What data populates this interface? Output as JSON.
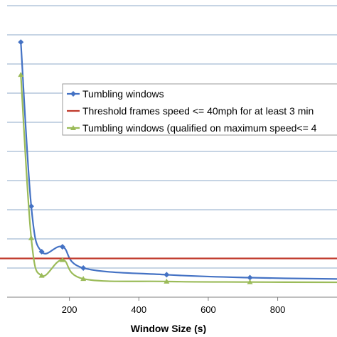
{
  "chart_data": {
    "type": "line",
    "xlabel": "Window Size (s)",
    "ylabel": "",
    "title": "",
    "xlim": [
      0,
      1000
    ],
    "ylim": [
      0,
      100
    ],
    "x_ticks": [
      200,
      400,
      600,
      800
    ],
    "grid": "horizontal",
    "legend_position": "right",
    "series": [
      {
        "name": "Tumbling windows",
        "color": "#4472C4",
        "marker": "diamond",
        "x": [
          60,
          90,
          120,
          180,
          240,
          480,
          720,
          1000
        ],
        "y": [
          87.5,
          31.2,
          15.6,
          17.3,
          10.0,
          7.7,
          6.7,
          6.2
        ]
      },
      {
        "name": "Threshold frames speed <= 40mph for at least 3 min",
        "color": "#C0392B",
        "marker": "none",
        "x": [
          0,
          1000
        ],
        "y": [
          13.3,
          13.3
        ]
      },
      {
        "name": "Tumbling windows (qualified on maximum speed<= 4",
        "color": "#9BBB59",
        "marker": "triangle",
        "x": [
          60,
          90,
          120,
          180,
          240,
          480,
          720,
          1000
        ],
        "y": [
          76.3,
          20.3,
          7.4,
          12.8,
          6.3,
          5.4,
          5.2,
          5.1
        ]
      }
    ]
  }
}
